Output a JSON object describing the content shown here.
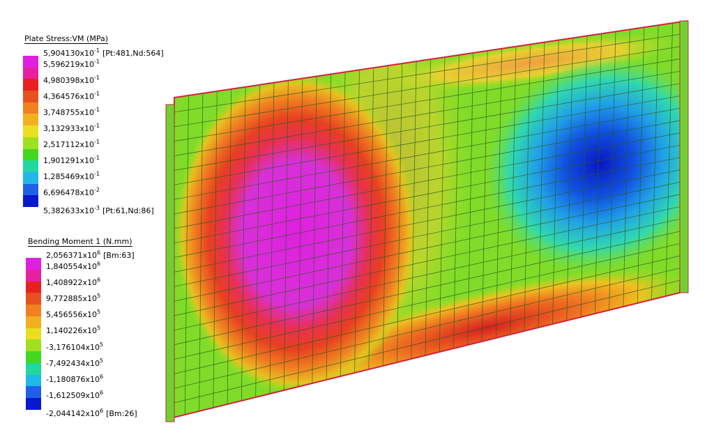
{
  "legends": [
    {
      "title": "Plate Stress:VM  (MPa)",
      "entries": [
        {
          "mantissa": "5,904130x10",
          "exponent": "-1",
          "note": "[Pt:481,Nd:564]"
        },
        {
          "mantissa": "5,596219x10",
          "exponent": "-1"
        },
        {
          "mantissa": "4,980398x10",
          "exponent": "-1"
        },
        {
          "mantissa": "4,364576x10",
          "exponent": "-1"
        },
        {
          "mantissa": "3,748755x10",
          "exponent": "-1"
        },
        {
          "mantissa": "3,132933x10",
          "exponent": "-1"
        },
        {
          "mantissa": "2,517112x10",
          "exponent": "-1"
        },
        {
          "mantissa": "1,901291x10",
          "exponent": "-1"
        },
        {
          "mantissa": "1,285469x10",
          "exponent": "-1"
        },
        {
          "mantissa": "6,696478x10",
          "exponent": "-2"
        },
        {
          "mantissa": "5,382633x10",
          "exponent": "-3",
          "note": "[Pt:61,Nd:86]"
        }
      ]
    },
    {
      "title": "Bending Moment 1  (N.mm)",
      "entries": [
        {
          "mantissa": "2,056371x10",
          "exponent": "6",
          "note": "[Bm:63]"
        },
        {
          "mantissa": "1,840554x10",
          "exponent": "6"
        },
        {
          "mantissa": "1,408922x10",
          "exponent": "6"
        },
        {
          "mantissa": "9,772885x10",
          "exponent": "5"
        },
        {
          "mantissa": "5,456556x10",
          "exponent": "5"
        },
        {
          "mantissa": "1,140226x10",
          "exponent": "5"
        },
        {
          "mantissa": "-3,176104x10",
          "exponent": "5"
        },
        {
          "mantissa": "-7,492434x10",
          "exponent": "5"
        },
        {
          "mantissa": "-1,180876x10",
          "exponent": "6"
        },
        {
          "mantissa": "-1,612509x10",
          "exponent": "6"
        },
        {
          "mantissa": "-2,044142x10",
          "exponent": "6",
          "note": "[Bm:26]"
        }
      ]
    }
  ]
}
